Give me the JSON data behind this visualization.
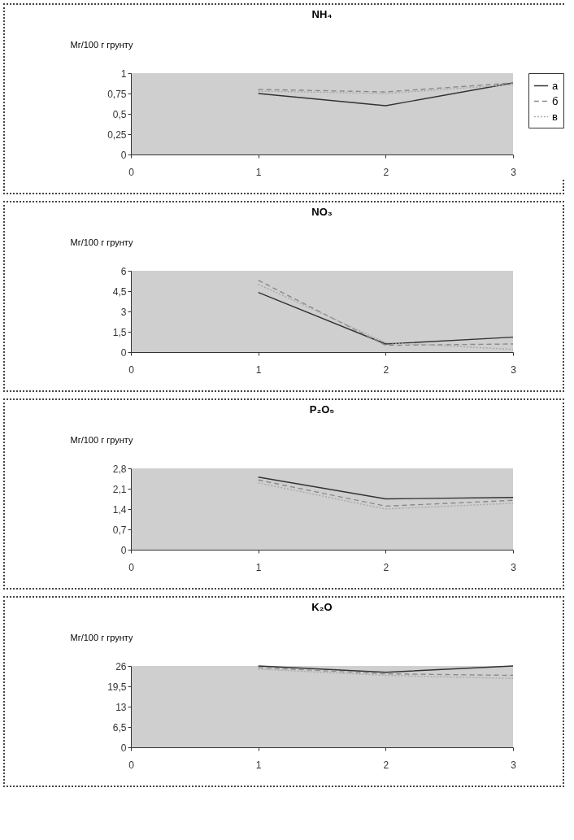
{
  "chart_data": [
    {
      "type": "line",
      "title": "NH₄",
      "ylabel": "Мг/100 г грунту",
      "x": [
        1,
        2,
        3
      ],
      "legend": "right",
      "marker": "none",
      "grid": false,
      "xlim": [
        0,
        3
      ],
      "xticks": [
        0,
        1,
        2,
        3
      ],
      "ylim": [
        0,
        1
      ],
      "yticks": [
        0,
        {
          "value": 0.25,
          "label": "0,25"
        },
        {
          "value": 0.5,
          "label": "0,5"
        },
        {
          "value": 0.75,
          "label": "0,75"
        },
        1
      ],
      "series": [
        {
          "name": "а",
          "color": "#333333",
          "line_style": "solid",
          "values": [
            0.75,
            0.6,
            0.88
          ]
        },
        {
          "name": "б",
          "color": "#8a8a8a",
          "line_style": "dashed",
          "values": [
            0.8,
            0.77,
            0.88
          ]
        },
        {
          "name": "в",
          "color": "#a8a8a8",
          "line_style": "dotted",
          "values": [
            0.78,
            0.75,
            0.86
          ]
        }
      ]
    },
    {
      "type": "line",
      "title": "NO₃",
      "ylabel": "Мг/100 г грунту",
      "x": [
        1,
        2,
        3
      ],
      "legend": false,
      "marker": "none",
      "grid": false,
      "xlim": [
        0,
        3
      ],
      "xticks": [
        0,
        1,
        2,
        3
      ],
      "ylim": [
        0,
        6
      ],
      "yticks": [
        0,
        {
          "value": 1.5,
          "label": "1,5"
        },
        3,
        {
          "value": 4.5,
          "label": "4,5"
        },
        6
      ],
      "series": [
        {
          "color": "#333333",
          "line_style": "solid",
          "values": [
            4.4,
            0.6,
            1.1
          ]
        },
        {
          "color": "#8a8a8a",
          "line_style": "dashed",
          "values": [
            5.3,
            0.5,
            0.6
          ]
        },
        {
          "color": "#a8a8a8",
          "line_style": "dotted",
          "values": [
            5.0,
            0.7,
            0.2
          ]
        }
      ]
    },
    {
      "type": "line",
      "title": "P₂O₅",
      "ylabel": "Мг/100 г грунту",
      "x": [
        1,
        2,
        3
      ],
      "legend": false,
      "marker": "none",
      "grid": false,
      "xlim": [
        0,
        3
      ],
      "xticks": [
        0,
        1,
        2,
        3
      ],
      "ylim": [
        0,
        2.8
      ],
      "yticks": [
        0,
        {
          "value": 0.7,
          "label": "0,7"
        },
        {
          "value": 1.4,
          "label": "1,4"
        },
        {
          "value": 2.1,
          "label": "2,1"
        },
        {
          "value": 2.8,
          "label": "2,8"
        }
      ],
      "series": [
        {
          "color": "#333333",
          "line_style": "solid",
          "values": [
            2.5,
            1.75,
            1.8
          ]
        },
        {
          "color": "#8a8a8a",
          "line_style": "dashed",
          "values": [
            2.4,
            1.5,
            1.7
          ]
        },
        {
          "color": "#a8a8a8",
          "line_style": "dotted",
          "values": [
            2.3,
            1.4,
            1.6
          ]
        }
      ]
    },
    {
      "type": "line",
      "title": "K₂O",
      "ylabel": "Мг/100 г грунту",
      "x": [
        1,
        2,
        3
      ],
      "legend": false,
      "marker": "none",
      "grid": false,
      "xlim": [
        0,
        3
      ],
      "xticks": [
        0,
        1,
        2,
        3
      ],
      "ylim": [
        0,
        26
      ],
      "yticks": [
        0,
        {
          "value": 6.5,
          "label": "6,5"
        },
        13,
        {
          "value": 19.5,
          "label": "19,5"
        },
        26
      ],
      "series": [
        {
          "color": "#333333",
          "line_style": "solid",
          "values": [
            26,
            24,
            26
          ]
        },
        {
          "color": "#8a8a8a",
          "line_style": "dashed",
          "values": [
            25.5,
            23.5,
            23
          ]
        },
        {
          "color": "#a8a8a8",
          "line_style": "dotted",
          "values": [
            25,
            23,
            22
          ]
        }
      ]
    }
  ]
}
